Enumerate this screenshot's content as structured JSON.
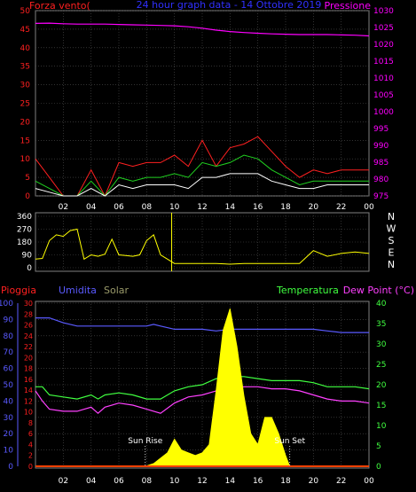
{
  "chart_data": [
    {
      "type": "line",
      "title": "24 hour graph data - 14 Ottobre 2019",
      "left_label": "Forza vento(",
      "right_label": "Pressione",
      "x_ticks": [
        "02",
        "04",
        "06",
        "08",
        "10",
        "12",
        "14",
        "16",
        "18",
        "20",
        "22",
        "00"
      ],
      "y_left": {
        "ticks": [
          0,
          5,
          10,
          15,
          20,
          25,
          30,
          35,
          40,
          45,
          50
        ],
        "range": [
          0,
          50
        ]
      },
      "y_right": {
        "ticks": [
          975,
          980,
          985,
          990,
          995,
          1000,
          1005,
          1010,
          1015,
          1020,
          1025,
          1030
        ],
        "range": [
          975,
          1030
        ]
      },
      "series": [
        {
          "color": "#ff2020",
          "x": [
            0,
            1,
            2,
            3,
            4,
            5,
            6,
            7,
            8,
            9,
            10,
            11,
            12,
            13,
            14,
            15,
            16,
            17,
            18,
            19,
            20,
            21,
            22,
            23,
            24
          ],
          "y": [
            10,
            5,
            0,
            0,
            7,
            0,
            9,
            8,
            9,
            9,
            11,
            8,
            15,
            8,
            13,
            14,
            16,
            12,
            8,
            5,
            7,
            6,
            7,
            7,
            7
          ]
        },
        {
          "color": "#20d020",
          "x": [
            0,
            1,
            2,
            3,
            4,
            5,
            6,
            7,
            8,
            9,
            10,
            11,
            12,
            13,
            14,
            15,
            16,
            17,
            18,
            19,
            20,
            21,
            22,
            23,
            24
          ],
          "y": [
            4,
            2,
            0,
            0,
            4,
            0,
            5,
            4,
            5,
            5,
            6,
            5,
            9,
            8,
            9,
            11,
            10,
            7,
            5,
            3,
            4,
            4,
            4,
            4,
            4
          ]
        },
        {
          "color": "#ffffff",
          "x": [
            0,
            1,
            2,
            3,
            4,
            5,
            6,
            7,
            8,
            9,
            10,
            11,
            12,
            13,
            14,
            15,
            16,
            17,
            18,
            19,
            20,
            21,
            22,
            23,
            24
          ],
          "y": [
            2,
            1,
            0,
            0,
            2,
            0,
            3,
            2,
            3,
            3,
            3,
            2,
            5,
            5,
            6,
            6,
            6,
            4,
            3,
            2,
            2,
            3,
            3,
            3,
            3
          ]
        },
        {
          "color": "#ff00ff",
          "x": [
            0,
            1,
            2,
            3,
            4,
            5,
            6,
            7,
            8,
            9,
            10,
            11,
            12,
            13,
            14,
            15,
            16,
            17,
            18,
            19,
            20,
            21,
            22,
            23,
            24
          ],
          "y": [
            1026.2,
            1026.3,
            1026.1,
            1026.0,
            1026.0,
            1026.0,
            1025.9,
            1025.8,
            1025.7,
            1025.6,
            1025.5,
            1025.2,
            1024.8,
            1024.2,
            1023.8,
            1023.5,
            1023.3,
            1023.1,
            1023.0,
            1022.9,
            1022.9,
            1022.9,
            1022.8,
            1022.7,
            1022.5
          ]
        }
      ]
    },
    {
      "type": "line",
      "y_ticks": [
        "360",
        "270",
        "180",
        "90",
        "0"
      ],
      "y_range": [
        0,
        360
      ],
      "right_labels": [
        "N",
        "W",
        "S",
        "E",
        "N"
      ],
      "marker_x": 9.8,
      "series": [
        {
          "color": "#ffff00",
          "x": [
            0,
            0.5,
            1,
            1.5,
            2,
            2.5,
            3,
            3.5,
            4,
            4.5,
            5,
            5.5,
            6,
            6.5,
            7,
            7.5,
            8,
            8.5,
            9,
            9.5,
            10,
            11,
            12,
            13,
            14,
            15,
            16,
            17,
            18,
            19,
            20,
            21,
            22,
            23,
            24
          ],
          "y": [
            60,
            65,
            190,
            230,
            220,
            260,
            270,
            60,
            90,
            80,
            95,
            200,
            90,
            85,
            80,
            90,
            190,
            230,
            90,
            60,
            30,
            30,
            30,
            30,
            25,
            30,
            30,
            30,
            30,
            30,
            120,
            80,
            100,
            110,
            100
          ]
        }
      ]
    },
    {
      "type": "line",
      "labels": {
        "rain": "Pioggia",
        "humidity": "Umidita",
        "solar": "Solar",
        "temperature": "Temperatura",
        "dewpoint": "Dew Point (°C)"
      },
      "sunrise_label": "Sun Rise",
      "sunset_label": "Sun Set",
      "sunrise_x": 7.9,
      "sunset_x": 18.3,
      "x_ticks": [
        "02",
        "04",
        "06",
        "08",
        "10",
        "12",
        "14",
        "16",
        "18",
        "20",
        "22",
        "00"
      ],
      "y_humidity": {
        "ticks": [
          0,
          10,
          20,
          30,
          40,
          50,
          60,
          70,
          80,
          90,
          100
        ],
        "range": [
          0,
          100
        ]
      },
      "y_rain": {
        "ticks": [
          0,
          2,
          4,
          6,
          8,
          10,
          12,
          14,
          16,
          18,
          20,
          22,
          24,
          26,
          28,
          30
        ],
        "range": [
          0,
          30
        ]
      },
      "y_temp": {
        "ticks": [
          0,
          5,
          10,
          15,
          20,
          25,
          30,
          35,
          40
        ],
        "range": [
          0,
          40
        ]
      },
      "series": [
        {
          "color": "#5a5aff",
          "x": [
            0,
            1,
            2,
            3,
            4,
            5,
            6,
            7,
            8,
            8.5,
            9,
            10,
            11,
            12,
            13,
            14,
            15,
            16,
            17,
            18,
            19,
            20,
            21,
            22,
            23,
            24
          ],
          "y": [
            91,
            91,
            88,
            86,
            86,
            86,
            86,
            86,
            86,
            87,
            86,
            84,
            84,
            84,
            83,
            84,
            84,
            84,
            84,
            84,
            84,
            84,
            83,
            82,
            82,
            82
          ]
        },
        {
          "color": "#40ff40",
          "x": [
            0,
            0.5,
            1,
            2,
            3,
            4,
            4.5,
            5,
            6,
            7,
            8,
            9,
            10,
            11,
            12,
            13,
            14,
            15,
            16,
            17,
            18,
            19,
            20,
            21,
            22,
            23,
            24
          ],
          "y": [
            19.5,
            19.5,
            17.5,
            17,
            16.5,
            17.5,
            16.5,
            17.5,
            18,
            17.5,
            16.5,
            16.5,
            18.5,
            19.5,
            20,
            21.5,
            22,
            22,
            21.5,
            21,
            21,
            21,
            20.5,
            19.5,
            19.5,
            19.5,
            19
          ]
        },
        {
          "color": "#ff40ff",
          "x": [
            0,
            0.5,
            1,
            2,
            3,
            4,
            4.5,
            5,
            6,
            7,
            8,
            9,
            10,
            11,
            12,
            13,
            14,
            15,
            16,
            17,
            18,
            19,
            20,
            21,
            22,
            23,
            24
          ],
          "y": [
            18.5,
            16,
            14,
            13.5,
            13.5,
            14.5,
            13,
            14.5,
            15.5,
            15,
            14,
            13,
            15.5,
            17,
            17.5,
            18.5,
            19,
            19.5,
            19.5,
            19,
            19,
            18.5,
            17.5,
            16.5,
            16,
            16,
            15.5
          ]
        },
        {
          "color": "#ffff00",
          "fill": true,
          "x": [
            0,
            7.9,
            8.5,
            9,
            9.5,
            10,
            10.5,
            11,
            11.5,
            12,
            12.5,
            13,
            13.5,
            14,
            14.5,
            15,
            15.5,
            16,
            16.5,
            17,
            17.5,
            18,
            18.3,
            24
          ],
          "y": [
            0,
            0,
            0.5,
            1.5,
            2.5,
            5,
            3,
            2.5,
            2,
            2.5,
            4,
            14,
            25,
            29,
            22,
            13,
            6,
            4,
            9,
            9,
            6,
            2,
            0,
            0
          ]
        },
        {
          "color": "#ff4000",
          "x": [
            0,
            24
          ],
          "y": [
            0,
            0
          ]
        }
      ]
    }
  ]
}
